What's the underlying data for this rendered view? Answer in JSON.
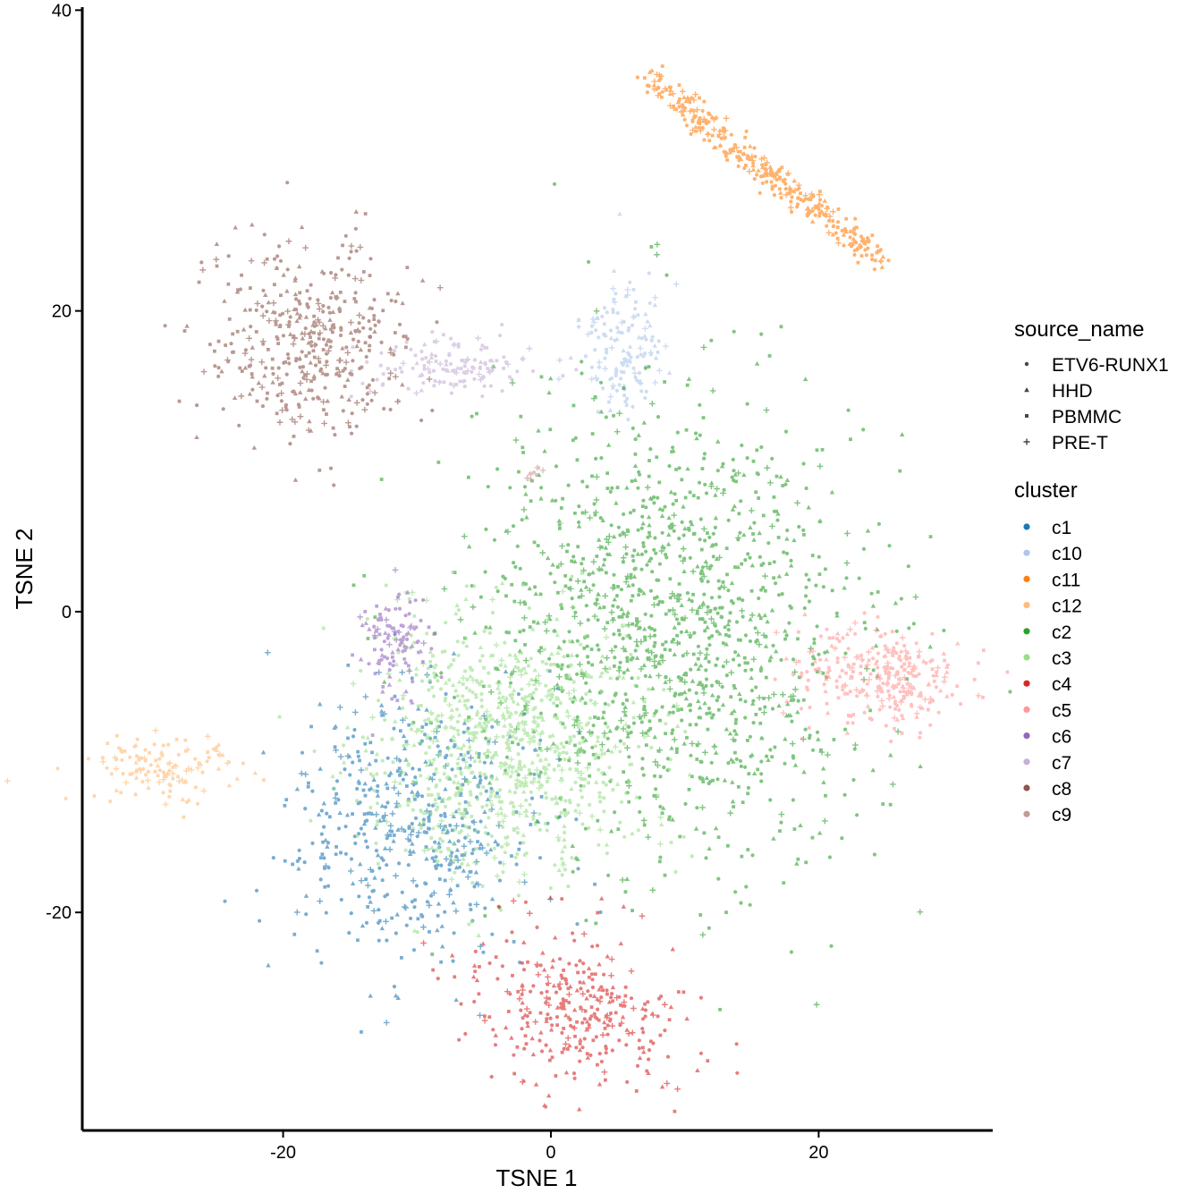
{
  "chart_data": {
    "type": "scatter",
    "xlabel": "TSNE 1",
    "ylabel": "TSNE 2",
    "xlim": [
      -35,
      33
    ],
    "ylim": [
      -34.5,
      40.2
    ],
    "x_ticks": [
      -20,
      0,
      20
    ],
    "x_tick_labels": [
      "-20",
      "0",
      "20"
    ],
    "y_ticks": [
      -20,
      0,
      20,
      40
    ],
    "y_tick_labels": [
      "-20",
      "0",
      "20",
      "40"
    ],
    "grid": false,
    "legend_placement": "right",
    "shape_legend": {
      "title": "source_name",
      "entries": [
        {
          "label": "ETV6-RUNX1",
          "shape": "circle"
        },
        {
          "label": "HHD",
          "shape": "triangle"
        },
        {
          "label": "PBMMC",
          "shape": "square"
        },
        {
          "label": "PRE-T",
          "shape": "cross"
        }
      ]
    },
    "color_legend": {
      "title": "cluster",
      "entries": [
        {
          "label": "c1",
          "color": "#1f77b4"
        },
        {
          "label": "c10",
          "color": "#aec7e8"
        },
        {
          "label": "c11",
          "color": "#ff7f0e"
        },
        {
          "label": "c12",
          "color": "#ffbb78"
        },
        {
          "label": "c2",
          "color": "#2ca02c"
        },
        {
          "label": "c3",
          "color": "#98df8a"
        },
        {
          "label": "c4",
          "color": "#d62728"
        },
        {
          "label": "c5",
          "color": "#ff9896"
        },
        {
          "label": "c6",
          "color": "#9467bd"
        },
        {
          "label": "c7",
          "color": "#c5b0d5"
        },
        {
          "label": "c8",
          "color": "#8c564b"
        },
        {
          "label": "c9",
          "color": "#c49c94"
        }
      ]
    },
    "clusters": [
      {
        "name": "c1",
        "color": "#1f77b4",
        "shape": "cloud",
        "n": 520,
        "cx": -10,
        "cy": -14,
        "sx": 4.5,
        "sy": 4.8,
        "rot": -38
      },
      {
        "name": "c10",
        "color": "#aec7e8",
        "shape": "cloud",
        "n": 150,
        "cx": 5.5,
        "cy": 17.5,
        "sx": 1.5,
        "sy": 2.3,
        "rot": 0
      },
      {
        "name": "c11",
        "color": "#ff7f0e",
        "shape": "line",
        "n": 340,
        "x0": 7,
        "y0": 35.5,
        "x1": 24.5,
        "y1": 23.5,
        "w": 0.5
      },
      {
        "name": "c12",
        "color": "#ffbb78",
        "shape": "cloud",
        "n": 130,
        "cx": -29,
        "cy": -10.3,
        "sx": 2.8,
        "sy": 1.1,
        "rot": 0
      },
      {
        "name": "c2",
        "color": "#2ca02c",
        "shape": "cloud",
        "n": 1350,
        "cx": 9,
        "cy": -1,
        "sx": 7,
        "sy": 7.8,
        "rot": 35
      },
      {
        "name": "c3",
        "color": "#98df8a",
        "shape": "cloud",
        "n": 900,
        "cx": -3.5,
        "cy": -9,
        "sx": 5.2,
        "sy": 4.2,
        "rot": 0
      },
      {
        "name": "c4",
        "color": "#d62728",
        "shape": "cloud",
        "n": 330,
        "cx": 2,
        "cy": -26.5,
        "sx": 4.2,
        "sy": 2.3,
        "rot": -18
      },
      {
        "name": "c5",
        "color": "#ff9896",
        "shape": "cloud",
        "n": 300,
        "cx": 25,
        "cy": -4.2,
        "sx": 3.2,
        "sy": 1.6,
        "rot": 0
      },
      {
        "name": "c6",
        "color": "#9467bd",
        "shape": "cloud",
        "n": 110,
        "cx": -11.5,
        "cy": -1.8,
        "sx": 1.3,
        "sy": 1.8,
        "rot": 0
      },
      {
        "name": "c7",
        "color": "#c5b0d5",
        "shape": "cloud",
        "n": 140,
        "cx": -7.5,
        "cy": 16.3,
        "sx": 3,
        "sy": 0.9,
        "rot": 0
      },
      {
        "name": "c8",
        "color": "#8c564b",
        "shape": "cloud",
        "n": 420,
        "cx": -18,
        "cy": 18,
        "sx": 3.7,
        "sy": 3.3,
        "rot": 0
      },
      {
        "name": "c9",
        "color": "#c49c94",
        "shape": "line",
        "n": 10,
        "x0": -2,
        "y0": 8.8,
        "x1": -0.5,
        "y1": 9.6,
        "w": 0.15
      }
    ]
  }
}
